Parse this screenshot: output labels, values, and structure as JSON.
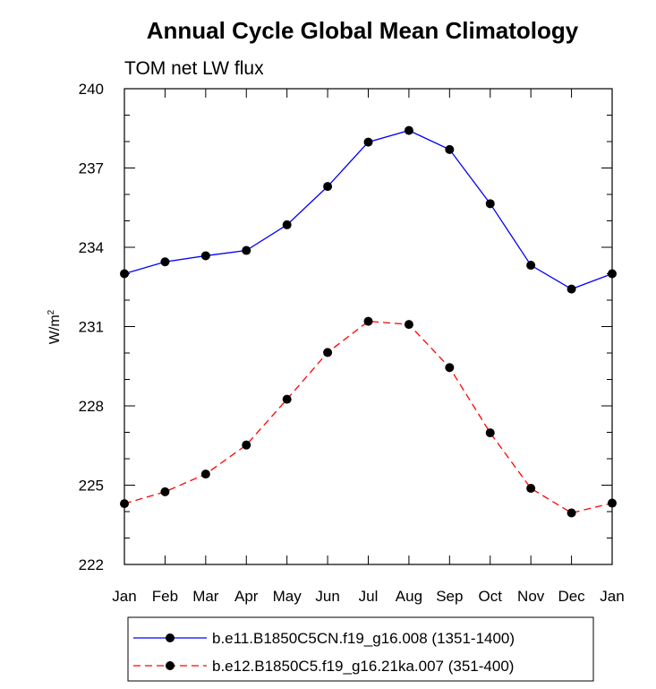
{
  "chart_data": {
    "type": "line",
    "title": "Annual Cycle Global Mean Climatology",
    "subtitle": "TOM net LW flux",
    "ylabel": "W/m",
    "ylabel_sup": "2",
    "xlabel": "",
    "categories": [
      "Jan",
      "Feb",
      "Mar",
      "Apr",
      "May",
      "Jun",
      "Jul",
      "Aug",
      "Sep",
      "Oct",
      "Nov",
      "Dec",
      "Jan"
    ],
    "ylim": [
      222,
      240
    ],
    "yticks": [
      222,
      225,
      228,
      231,
      234,
      237,
      240
    ],
    "ytick_labels": [
      "222",
      "225",
      "228",
      "231",
      "234",
      "237",
      "240"
    ],
    "grid": false,
    "legend_position": "bottom",
    "series": [
      {
        "name": "b.e11.B1850C5CN.f19_g16.008 (1351-1400)",
        "color": "#0000ff",
        "dash": "solid",
        "values": [
          233.0,
          233.45,
          233.68,
          233.88,
          234.85,
          236.3,
          237.98,
          238.42,
          237.7,
          235.65,
          233.32,
          232.42,
          233.0
        ]
      },
      {
        "name": "b.e12.B1850C5.f19_g16.21ka.007 (351-400)",
        "color": "#ff0000",
        "dash": "dashed",
        "values": [
          224.3,
          224.75,
          225.42,
          226.52,
          228.25,
          230.02,
          231.2,
          231.08,
          229.45,
          226.98,
          224.88,
          223.95,
          224.32
        ]
      }
    ]
  }
}
